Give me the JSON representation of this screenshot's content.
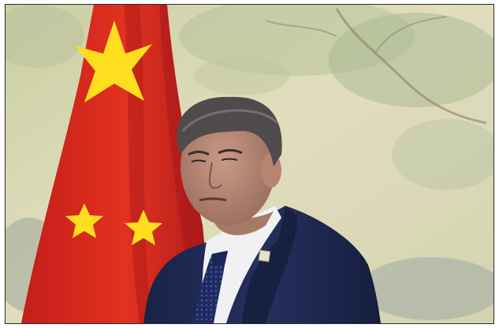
{
  "photo": {
    "subject": "man-in-dark-suit-beside-flag",
    "background": "painted-landscape-mural",
    "flag": "red-flag-with-yellow-stars"
  },
  "colors": {
    "flag_red": "#d8281e",
    "flag_red_shadow": "#a8161a",
    "star_yellow": "#ffde1f",
    "mural_base": "#d6d7b6",
    "suit_navy": "#1f2a54",
    "shirt": "#f1f1f3",
    "tie": "#1e2c63",
    "skin": "#b98c78",
    "hair": "#4f4a4c"
  }
}
